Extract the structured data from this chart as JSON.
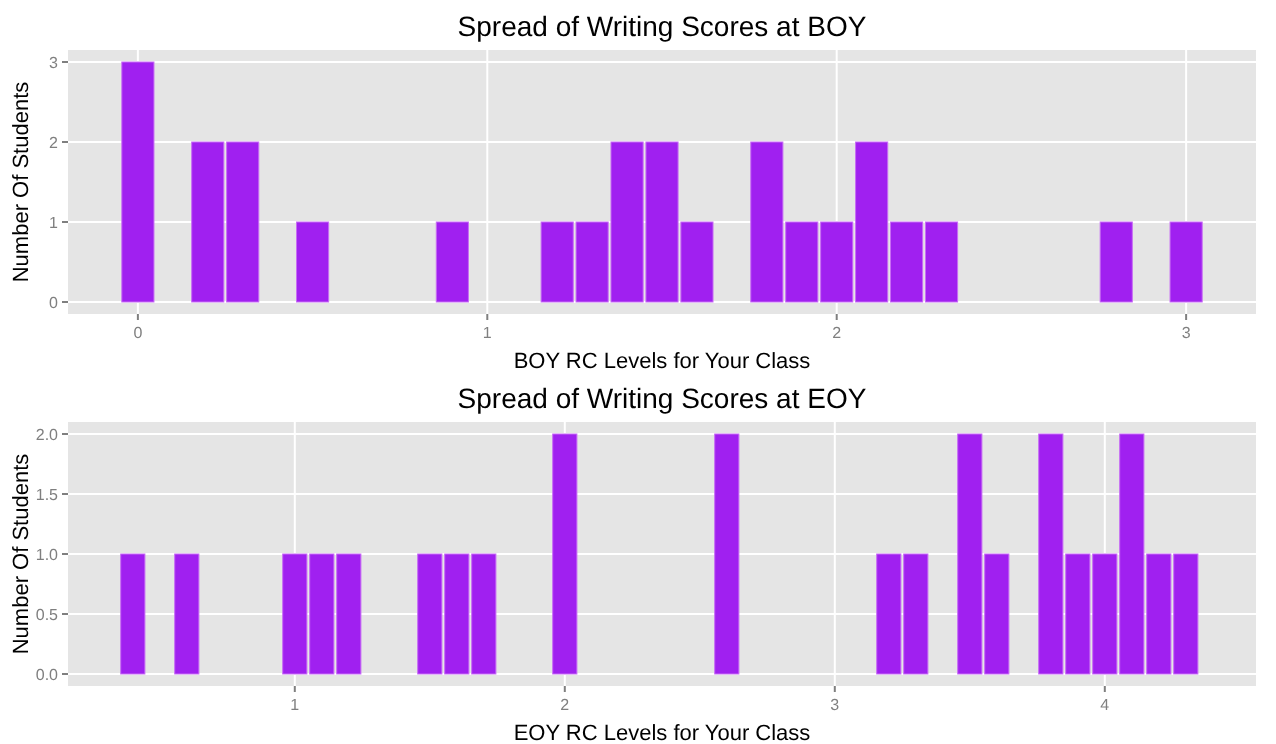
{
  "chart_data": [
    {
      "type": "histogram",
      "title": "Spread of Writing Scores at BOY",
      "xlabel": "BOY RC Levels for Your Class",
      "ylabel": "Number Of Students",
      "color": "#a020f0",
      "bins": [
        -0.05,
        0.05,
        0.15,
        0.25,
        0.35,
        0.45,
        0.55,
        0.65,
        0.75,
        0.85,
        0.95,
        1.05,
        1.15,
        1.25,
        1.35,
        1.45,
        1.55,
        1.65,
        1.75,
        1.85,
        1.95,
        2.05,
        2.15,
        2.25,
        2.35,
        2.45,
        2.55,
        2.65,
        2.75,
        2.85,
        2.95,
        3.05
      ],
      "values": [
        3,
        0,
        2,
        2,
        0,
        1,
        0,
        0,
        0,
        1,
        0,
        0,
        1,
        1,
        2,
        2,
        1,
        0,
        2,
        1,
        1,
        2,
        1,
        1,
        0,
        0,
        0,
        0,
        1,
        0,
        1
      ],
      "xlim": [
        -0.2,
        3.2
      ],
      "xticks": [
        0,
        1,
        2,
        3
      ],
      "ylim": [
        -0.15,
        3.15
      ],
      "yticks": [
        0,
        1,
        2,
        3
      ],
      "grid": true
    },
    {
      "type": "histogram",
      "title": "Spread of Writing Scores at EOY",
      "xlabel": "EOY RC Levels for Your Class",
      "ylabel": "Number Of Students",
      "color": "#a020f0",
      "bins": [
        0.35,
        0.45,
        0.55,
        0.65,
        0.75,
        0.85,
        0.95,
        1.05,
        1.15,
        1.25,
        1.35,
        1.45,
        1.55,
        1.65,
        1.75,
        1.85,
        1.95,
        2.05,
        2.15,
        2.25,
        2.35,
        2.45,
        2.55,
        2.65,
        2.75,
        2.85,
        2.95,
        3.05,
        3.15,
        3.25,
        3.35,
        3.45,
        3.55,
        3.65,
        3.75,
        3.85,
        3.95,
        4.05,
        4.15,
        4.25,
        4.35
      ],
      "values": [
        1,
        0,
        1,
        0,
        0,
        0,
        1,
        1,
        1,
        0,
        0,
        1,
        1,
        1,
        0,
        0,
        2,
        0,
        0,
        0,
        0,
        0,
        2,
        0,
        0,
        0,
        0,
        0,
        1,
        1,
        0,
        2,
        1,
        0,
        2,
        1,
        1,
        2,
        1,
        1
      ],
      "xlim": [
        0.16,
        4.56
      ],
      "xticks": [
        1,
        2,
        3,
        4
      ],
      "ylim": [
        -0.1,
        2.1
      ],
      "yticks": [
        {
          "value": 0,
          "label": "0.0"
        },
        {
          "value": 0.5,
          "label": "0.5"
        },
        {
          "value": 1,
          "label": "1.0"
        },
        {
          "value": 1.5,
          "label": "1.5"
        },
        {
          "value": 2,
          "label": "2.0"
        }
      ],
      "grid": true
    }
  ]
}
